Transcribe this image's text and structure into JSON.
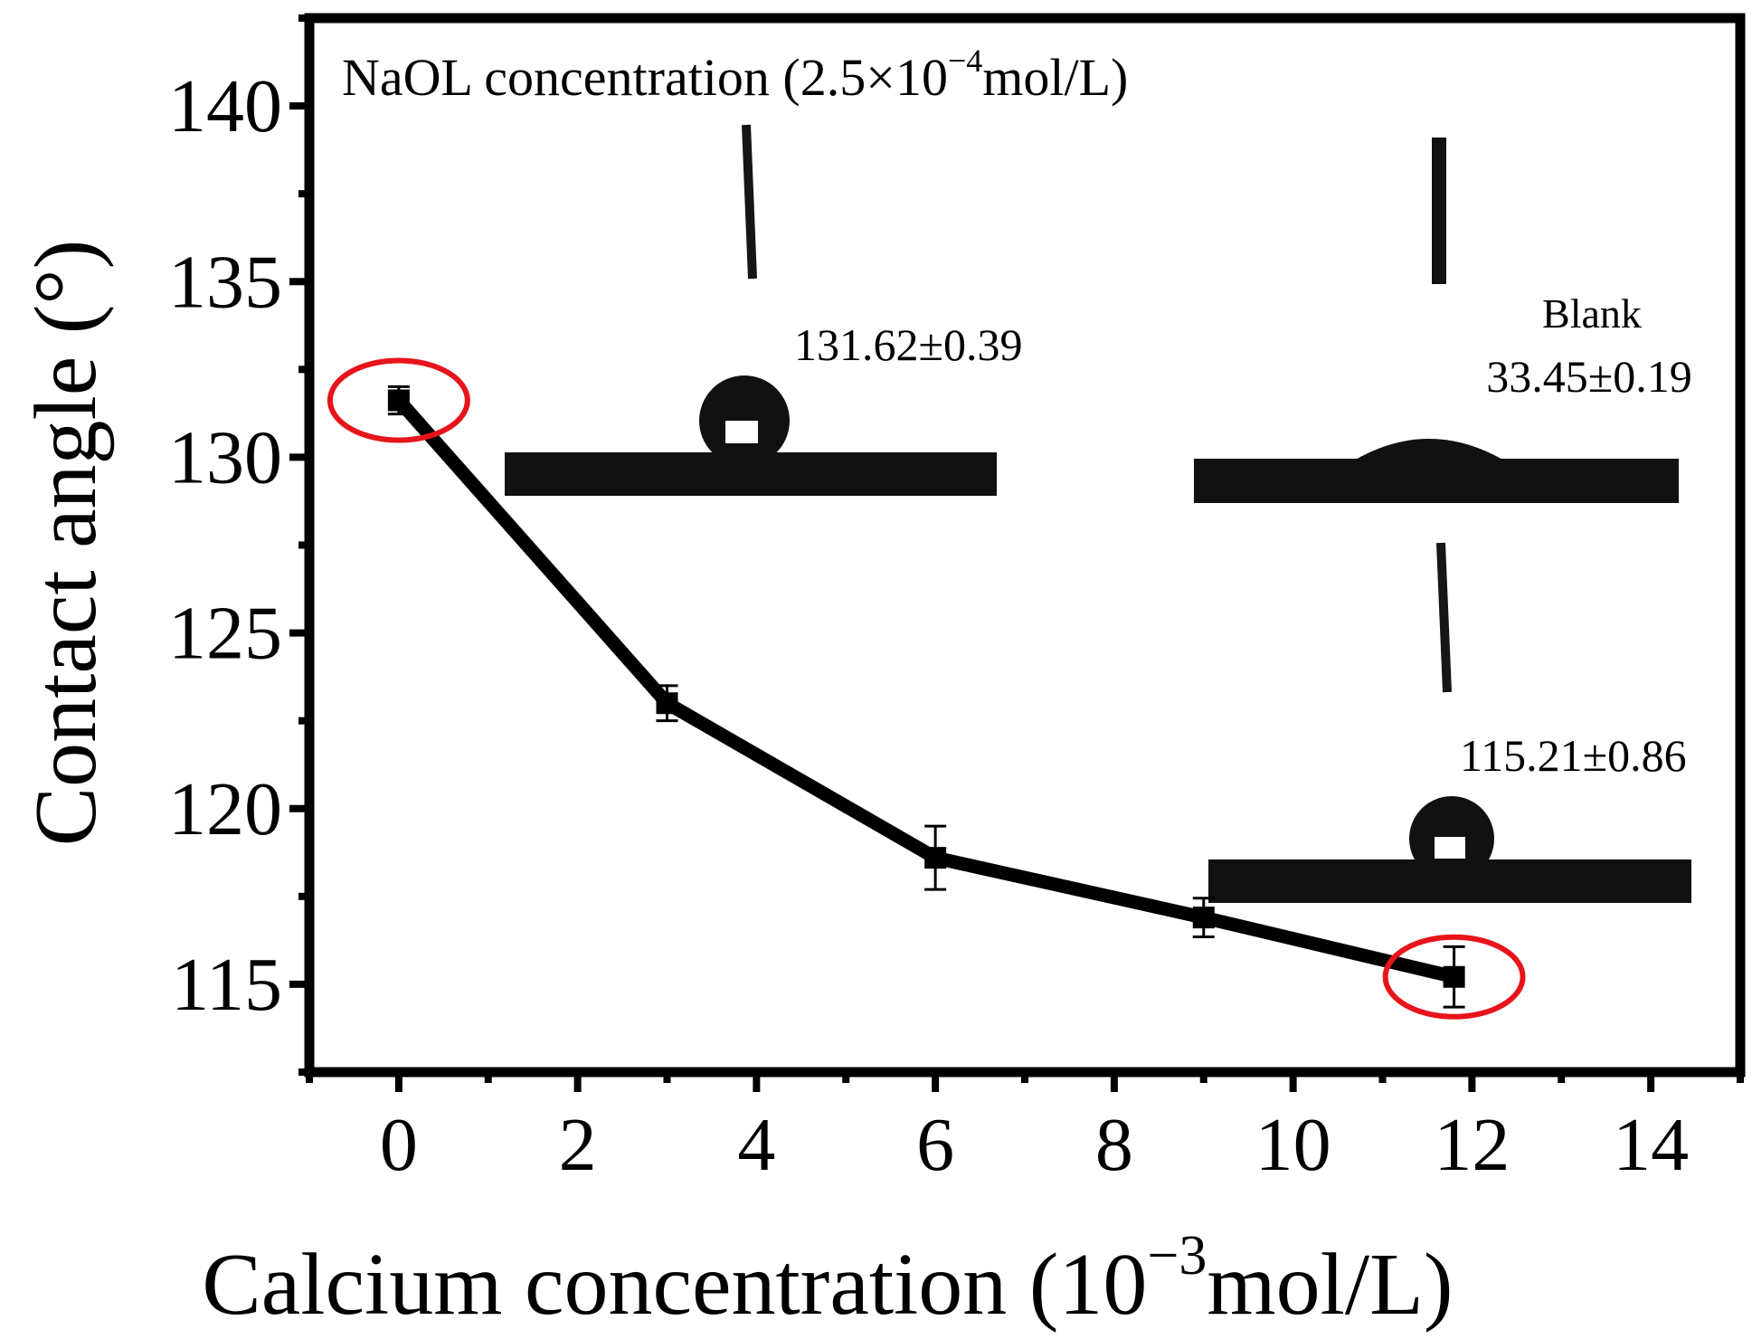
{
  "chart_data": {
    "type": "line",
    "title": "",
    "xlabel": "Calcium concentration (10",
    "xlabel_exp": "−3",
    "xlabel_unit": "mol/L)",
    "ylabel": "Contact angle (°)",
    "xlim": [
      -1,
      15
    ],
    "ylim": [
      112.5,
      142.5
    ],
    "xticks": [
      0,
      2,
      4,
      6,
      8,
      10,
      12,
      14
    ],
    "xtick_labels": [
      "0",
      "2",
      "4",
      "6",
      "8",
      "10",
      "12",
      "14"
    ],
    "yticks": [
      115,
      120,
      125,
      130,
      135,
      140
    ],
    "ytick_labels": [
      "115",
      "120",
      "125",
      "130",
      "135",
      "140"
    ],
    "grid": false,
    "series": [
      {
        "name": "Contact angle",
        "x": [
          0,
          3,
          6,
          9,
          11.8
        ],
        "y": [
          131.62,
          123.0,
          118.6,
          116.9,
          115.21
        ],
        "err": [
          0.39,
          0.5,
          0.9,
          0.55,
          0.86
        ]
      }
    ],
    "highlighted_points": [
      0,
      4
    ],
    "annotations": {
      "condition_prefix": "NaOL concentration (2.5×10",
      "condition_exp": "−4",
      "condition_unit": "mol/L)",
      "first_value": "131.62±0.39",
      "blank_label": "Blank",
      "blank_value": "33.45±0.19",
      "last_value": "115.21±0.86"
    }
  },
  "colors": {
    "line": "#000000",
    "highlight": "#e8141b",
    "droplet": "#111111"
  }
}
